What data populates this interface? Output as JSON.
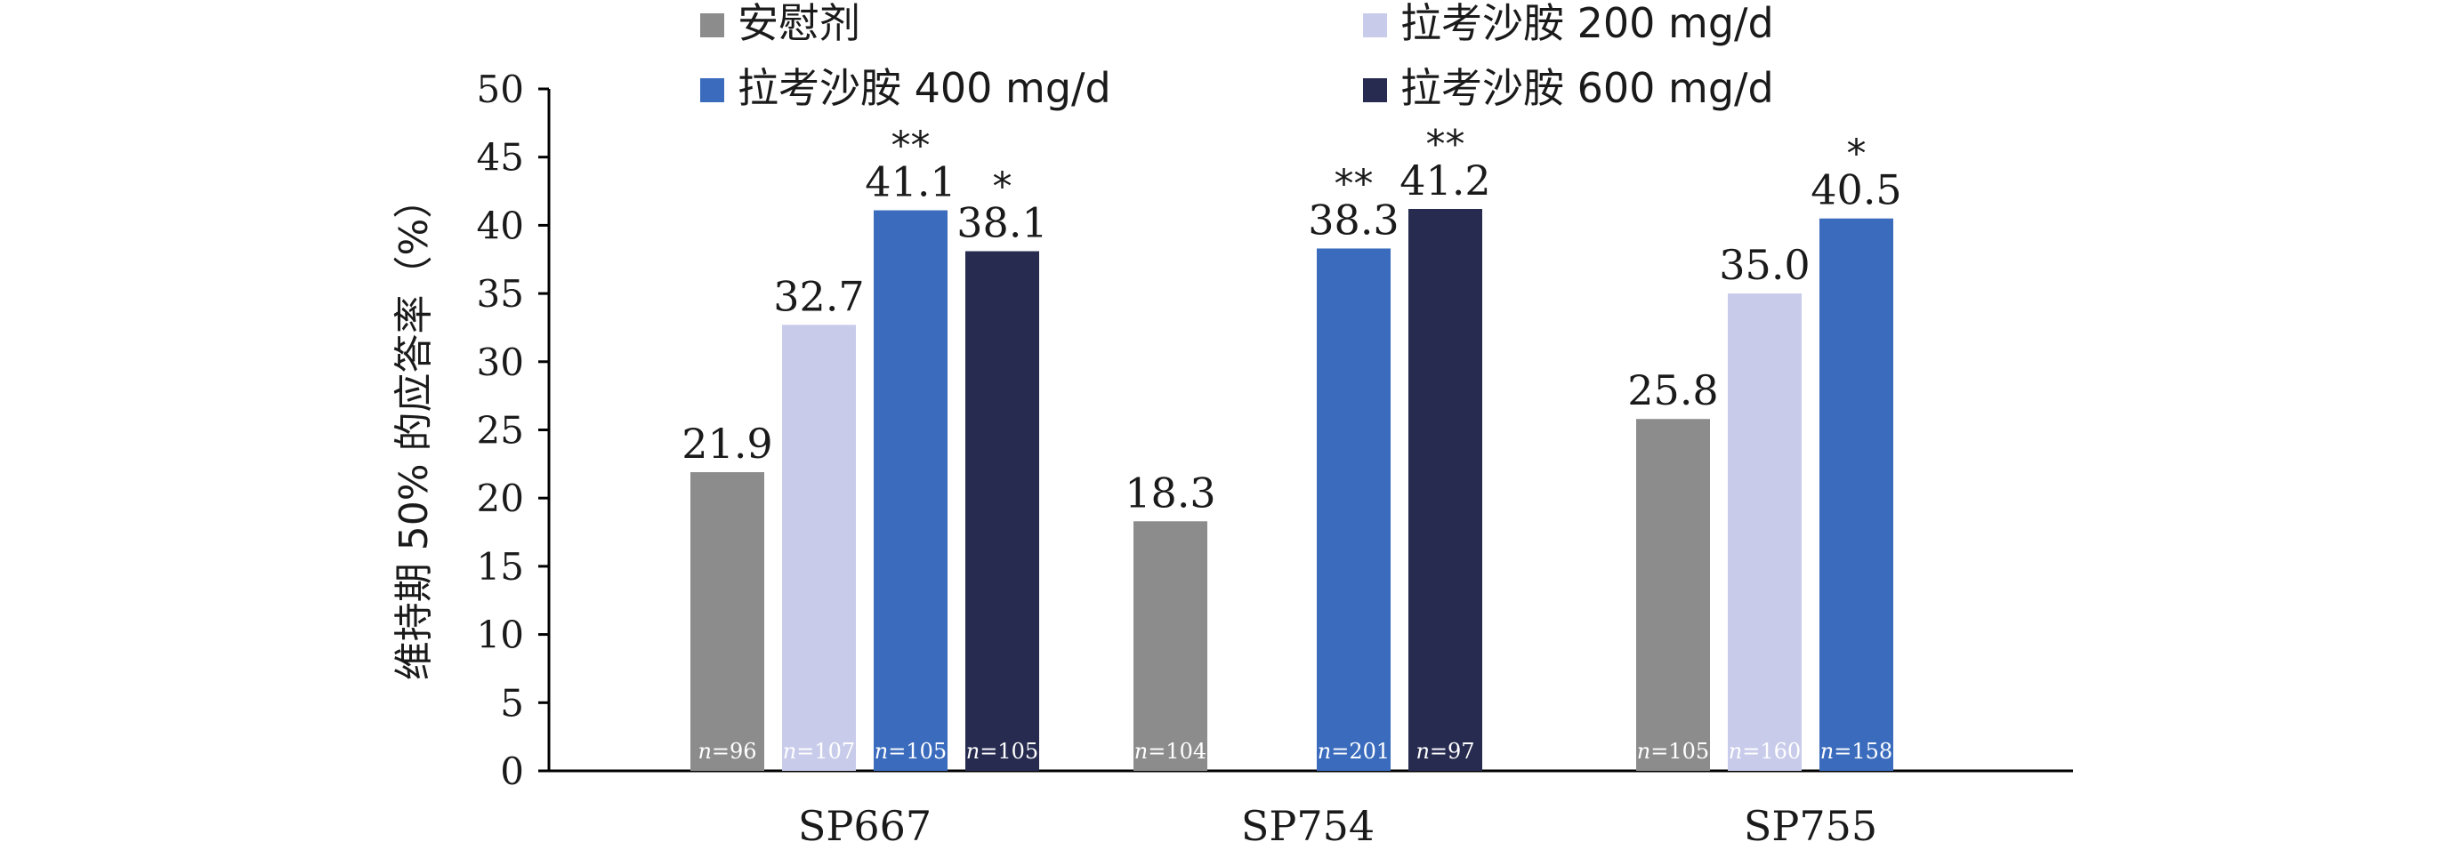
{
  "chart_data": {
    "type": "bar",
    "title": "",
    "xlabel": "",
    "ylabel": "维持期 50% 的应答率（%）",
    "ylim": [
      0,
      50
    ],
    "yticks": [
      0,
      5,
      10,
      15,
      20,
      25,
      30,
      35,
      40,
      45,
      50
    ],
    "grid": false,
    "legend_position": "top",
    "categories": [
      "SP667",
      "SP754",
      "SP755"
    ],
    "series": [
      {
        "name": "安慰剂",
        "color": "#8c8c8c",
        "values": [
          21.9,
          18.3,
          25.8
        ],
        "labels": [
          "21.9",
          "18.3",
          "25.8"
        ],
        "sig": [
          "",
          "",
          ""
        ],
        "n": [
          "96",
          "104",
          "105"
        ]
      },
      {
        "name": "拉考沙胺 200 mg/d",
        "color": "#c8cbea",
        "values": [
          32.7,
          null,
          35.0
        ],
        "labels": [
          "32.7",
          "",
          "35.0"
        ],
        "sig": [
          "",
          "",
          ""
        ],
        "n": [
          "107",
          "",
          "160"
        ]
      },
      {
        "name": "拉考沙胺 400 mg/d",
        "color": "#3a6bbd",
        "values": [
          41.1,
          38.3,
          40.5
        ],
        "labels": [
          "41.1",
          "38.3",
          "40.5"
        ],
        "sig": [
          "**",
          "**",
          "*"
        ],
        "n": [
          "105",
          "201",
          "158"
        ]
      },
      {
        "name": "拉考沙胺 600 mg/d",
        "color": "#272b50",
        "values": [
          38.1,
          41.2,
          null
        ],
        "labels": [
          "38.1",
          "41.2",
          ""
        ],
        "sig": [
          "*",
          "**",
          ""
        ],
        "n": [
          "105",
          "97",
          ""
        ]
      }
    ],
    "n_prefix": "n="
  }
}
